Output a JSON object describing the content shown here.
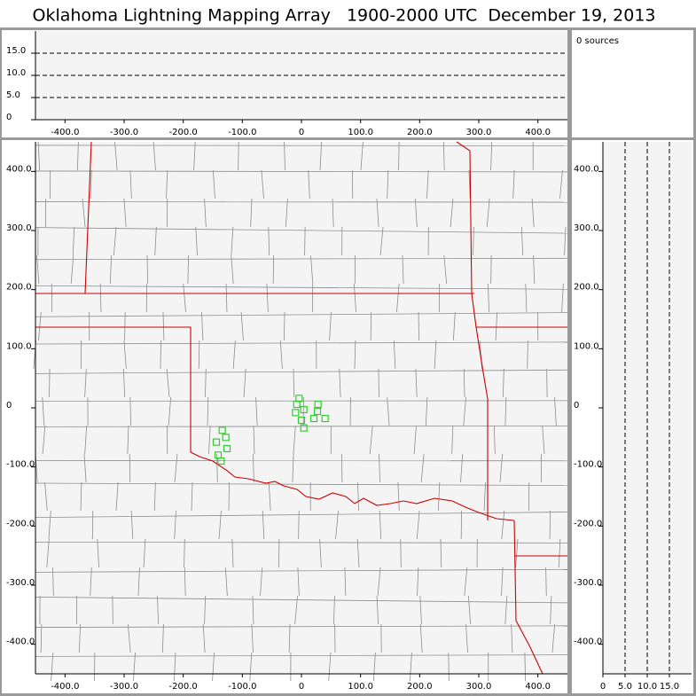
{
  "title": "Oklahoma Lightning Mapping Array   1900-2000 UTC  December 19, 2013",
  "source_count": "0 sources",
  "chart_data": [
    {
      "type": "scatter",
      "xlim": [
        -450,
        450
      ],
      "ylim": [
        0,
        20
      ],
      "xticks": [
        {
          "value": -400,
          "label": "-400.0"
        },
        {
          "value": -300,
          "label": "-300.0"
        },
        {
          "value": -200,
          "label": "-200.0"
        },
        {
          "value": -100,
          "label": "-100.0"
        },
        0,
        {
          "value": 100,
          "label": "100.0"
        },
        {
          "value": 200,
          "label": "200.0"
        },
        {
          "value": 300,
          "label": "300.0"
        },
        {
          "value": 400,
          "label": "400.0"
        }
      ],
      "yticks": [
        0,
        {
          "value": 5,
          "label": "5.0"
        },
        {
          "value": 10,
          "label": "10.0"
        },
        {
          "value": 15,
          "label": "15.0"
        }
      ],
      "grid": true,
      "series": []
    },
    {
      "type": "scatter",
      "xlim": [
        -450,
        450
      ],
      "ylim": [
        -450,
        450
      ],
      "xticks": [
        {
          "value": -400,
          "label": "-400.0"
        },
        {
          "value": -300,
          "label": "-300.0"
        },
        {
          "value": -200,
          "label": "-200.0"
        },
        {
          "value": -100,
          "label": "-100.0"
        },
        0,
        {
          "value": 100,
          "label": "100.0"
        },
        {
          "value": 200,
          "label": "200.0"
        },
        {
          "value": 300,
          "label": "300.0"
        },
        {
          "value": 400,
          "label": "400.0"
        }
      ],
      "yticks": [
        {
          "value": -400,
          "label": "-400.0"
        },
        {
          "value": -300,
          "label": "-300.0"
        },
        {
          "value": -200,
          "label": "-200.0"
        },
        {
          "value": -100,
          "label": "-100.0"
        },
        0,
        {
          "value": 100,
          "label": "100.0"
        },
        {
          "value": 200,
          "label": "200.0"
        },
        {
          "value": 300,
          "label": "300.0"
        },
        {
          "value": 400,
          "label": "400.0"
        }
      ],
      "grid": false,
      "series": [
        {
          "color": "#33cc33",
          "x": [
            -4,
            -8,
            4,
            -10,
            28,
            27,
            21,
            40,
            0,
            4,
            -134,
            -128,
            -144,
            -126,
            -141,
            -136
          ],
          "y": [
            16,
            6,
            -3,
            -8,
            6,
            -6,
            -18,
            -18,
            -21,
            -34,
            -38,
            -50,
            -58,
            -69,
            -80,
            -90
          ]
        }
      ]
    },
    {
      "type": "scatter",
      "xlim": [
        0,
        20
      ],
      "ylim": [
        -450,
        450
      ],
      "xticks": [
        0,
        {
          "value": 5,
          "label": "5.0"
        },
        {
          "value": 10,
          "label": "10.0"
        },
        {
          "value": 15,
          "label": "15.0"
        }
      ],
      "yticks": [
        {
          "value": -400,
          "label": "-400.0"
        },
        {
          "value": -300,
          "label": "-300.0"
        },
        {
          "value": -200,
          "label": "-200.0"
        },
        {
          "value": -100,
          "label": "-100.0"
        },
        0,
        {
          "value": 100,
          "label": "100.0"
        },
        {
          "value": 200,
          "label": "200.0"
        },
        {
          "value": 300,
          "label": "300.0"
        },
        {
          "value": 400,
          "label": "400.0"
        }
      ],
      "grid": true,
      "series": []
    }
  ]
}
